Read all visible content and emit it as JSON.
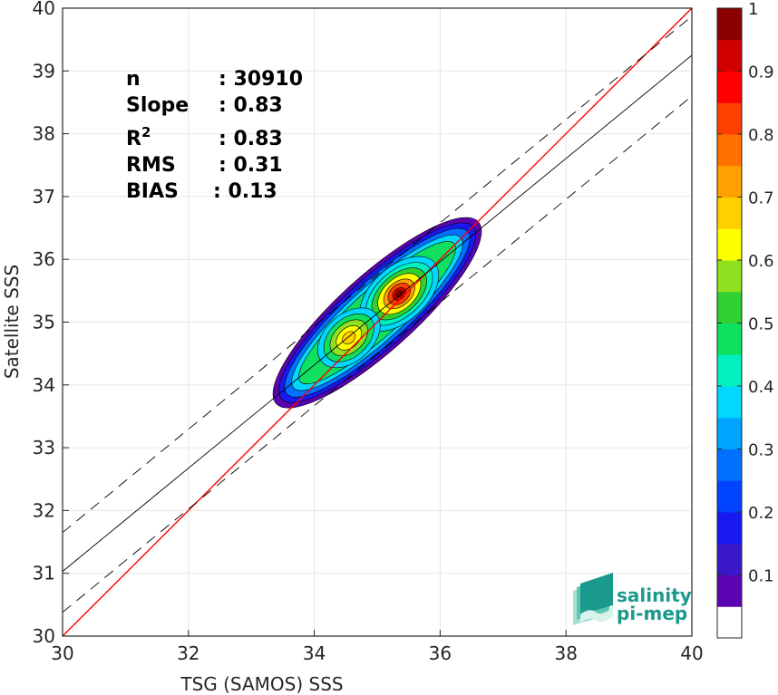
{
  "chart_data": {
    "type": "heatmap",
    "xlabel": "TSG (SAMOS) SSS",
    "ylabel": "Satellite SSS",
    "xlim": [
      30,
      40
    ],
    "ylim": [
      30,
      40
    ],
    "x_ticks": [
      "30",
      "32",
      "34",
      "36",
      "38",
      "40"
    ],
    "y_ticks": [
      "30",
      "31",
      "32",
      "33",
      "34",
      "35",
      "36",
      "37",
      "38",
      "39",
      "40"
    ],
    "grid": true,
    "stats": [
      {
        "key": "n",
        "value": ": 30910"
      },
      {
        "key": "Slope",
        "value": ": 0.83"
      },
      {
        "key": "R",
        "sup": "2",
        "value": ": 0.83"
      },
      {
        "key": "RMS",
        "value": ": 0.31"
      },
      {
        "key": "BIAS",
        "value": ": 0.13"
      }
    ],
    "lines": [
      {
        "name": "one-to-one",
        "color": "#ff0000",
        "style": "solid",
        "points": [
          [
            30,
            30
          ],
          [
            40,
            40
          ]
        ]
      },
      {
        "name": "regression",
        "color": "#000000",
        "style": "solid",
        "points": [
          [
            30,
            31.03
          ],
          [
            40,
            39.25
          ]
        ]
      },
      {
        "name": "regression-plus",
        "color": "#000000",
        "style": "dashed",
        "points": [
          [
            30,
            31.65
          ],
          [
            40,
            39.87
          ]
        ]
      },
      {
        "name": "regression-minus",
        "color": "#000000",
        "style": "dashed",
        "points": [
          [
            30,
            30.38
          ],
          [
            40,
            38.6
          ]
        ]
      }
    ],
    "density": {
      "description_levels": [
        0.05,
        0.1,
        0.15,
        0.2,
        0.25,
        0.3,
        0.35,
        0.4,
        0.45,
        0.5,
        0.55,
        0.6,
        0.65,
        0.7,
        0.75,
        0.8,
        0.85,
        0.9,
        0.95,
        1.0
      ],
      "peaks": [
        {
          "x": 35.35,
          "y": 35.45,
          "value": 1.0
        },
        {
          "x": 34.55,
          "y": 34.75,
          "value": 0.68
        }
      ]
    },
    "colorbar": {
      "ticks": [
        "0.1",
        "0.2",
        "0.3",
        "0.4",
        "0.5",
        "0.6",
        "0.7",
        "0.8",
        "0.9",
        "1"
      ],
      "range": [
        0,
        1
      ],
      "colors": [
        "#ffffff",
        "#5b03b1",
        "#3a17c8",
        "#1818f0",
        "#0044ff",
        "#0070ff",
        "#00a4ff",
        "#00d8ff",
        "#00f0c0",
        "#10e060",
        "#30d030",
        "#90e020",
        "#ffff00",
        "#ffd000",
        "#ffa000",
        "#ff7000",
        "#ff4000",
        "#ff0000",
        "#d00000",
        "#8a0000"
      ]
    }
  },
  "logo": {
    "line1": "salinity",
    "line2": "pi-mep"
  }
}
